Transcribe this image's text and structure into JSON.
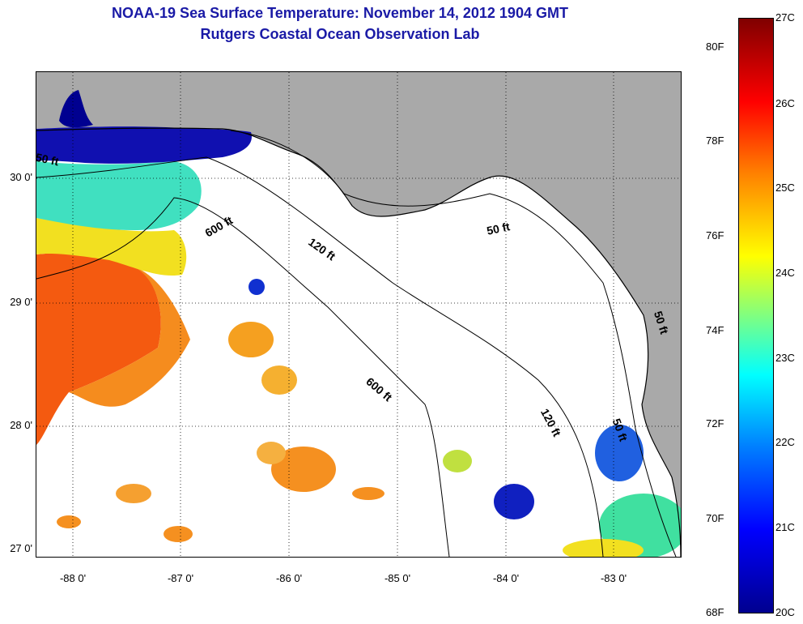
{
  "title_line1": "NOAA-19 Sea Surface Temperature:  November 14, 2012 1904 GMT",
  "title_line2": "Rutgers Coastal Ocean Observation Lab",
  "map": {
    "lat_labels": [
      "30 0'",
      "29 0'",
      "28 0'",
      "27 0'"
    ],
    "lon_labels": [
      "-88 0'",
      "-87 0'",
      "-86 0'",
      "-85 0'",
      "-84 0'",
      "-83 0'"
    ],
    "contour_labels": [
      "50 ft",
      "600 ft",
      "120 ft",
      "50 ft",
      "600 ft",
      "120 ft",
      "50 ft",
      "50 ft"
    ],
    "colors": {
      "land": "#a9a9a9",
      "no_data": "#ffffff",
      "contour": "#000000"
    }
  },
  "colorbar": {
    "fahrenheit_labels": [
      "80F",
      "78F",
      "76F",
      "74F",
      "72F",
      "70F",
      "68F"
    ],
    "celsius_labels": [
      "27C",
      "26C",
      "25C",
      "24C",
      "23C",
      "22C",
      "21C",
      "20C"
    ],
    "colormap": [
      "#00008f",
      "#0000ff",
      "#0080ff",
      "#00ffff",
      "#80ff80",
      "#ffff00",
      "#ff8000",
      "#ff0000",
      "#800000"
    ]
  }
}
